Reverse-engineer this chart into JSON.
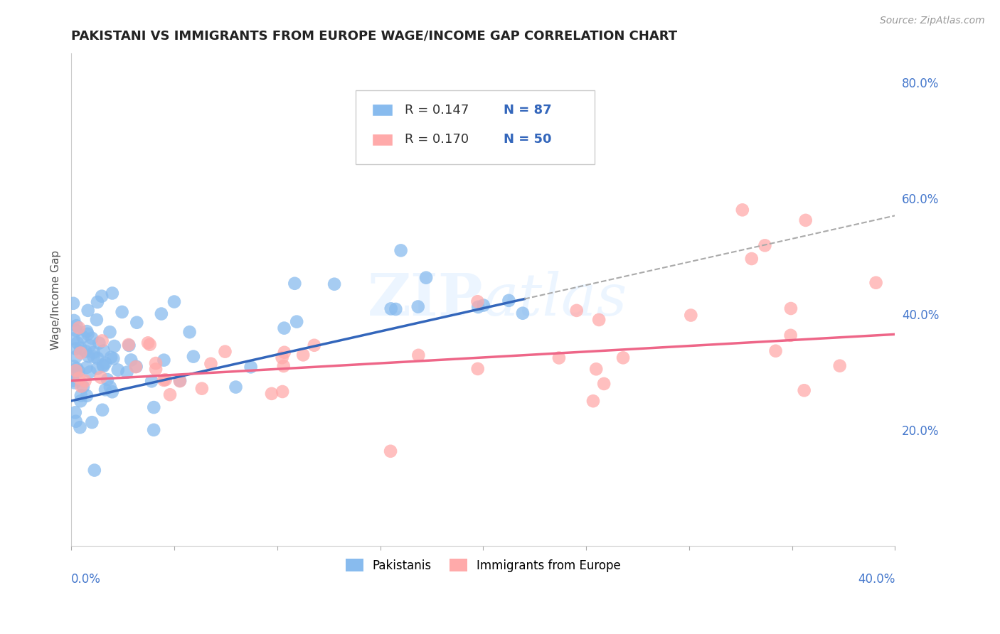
{
  "title": "PAKISTANI VS IMMIGRANTS FROM EUROPE WAGE/INCOME GAP CORRELATION CHART",
  "source": "Source: ZipAtlas.com",
  "ylabel": "Wage/Income Gap",
  "xlim": [
    0.0,
    0.4
  ],
  "ylim": [
    0.0,
    0.85
  ],
  "watermark_line1": "ZIP",
  "watermark_line2": "atlas",
  "legend_r1": "R = 0.147",
  "legend_n1": "N = 87",
  "legend_r2": "R = 0.170",
  "legend_n2": "N = 50",
  "blue_color": "#88BBEE",
  "pink_color": "#FFAAAA",
  "blue_line_color": "#3366BB",
  "pink_line_color": "#EE6688",
  "title_fontsize": 13,
  "source_fontsize": 10,
  "ylabel_fontsize": 11,
  "tick_fontsize": 12
}
